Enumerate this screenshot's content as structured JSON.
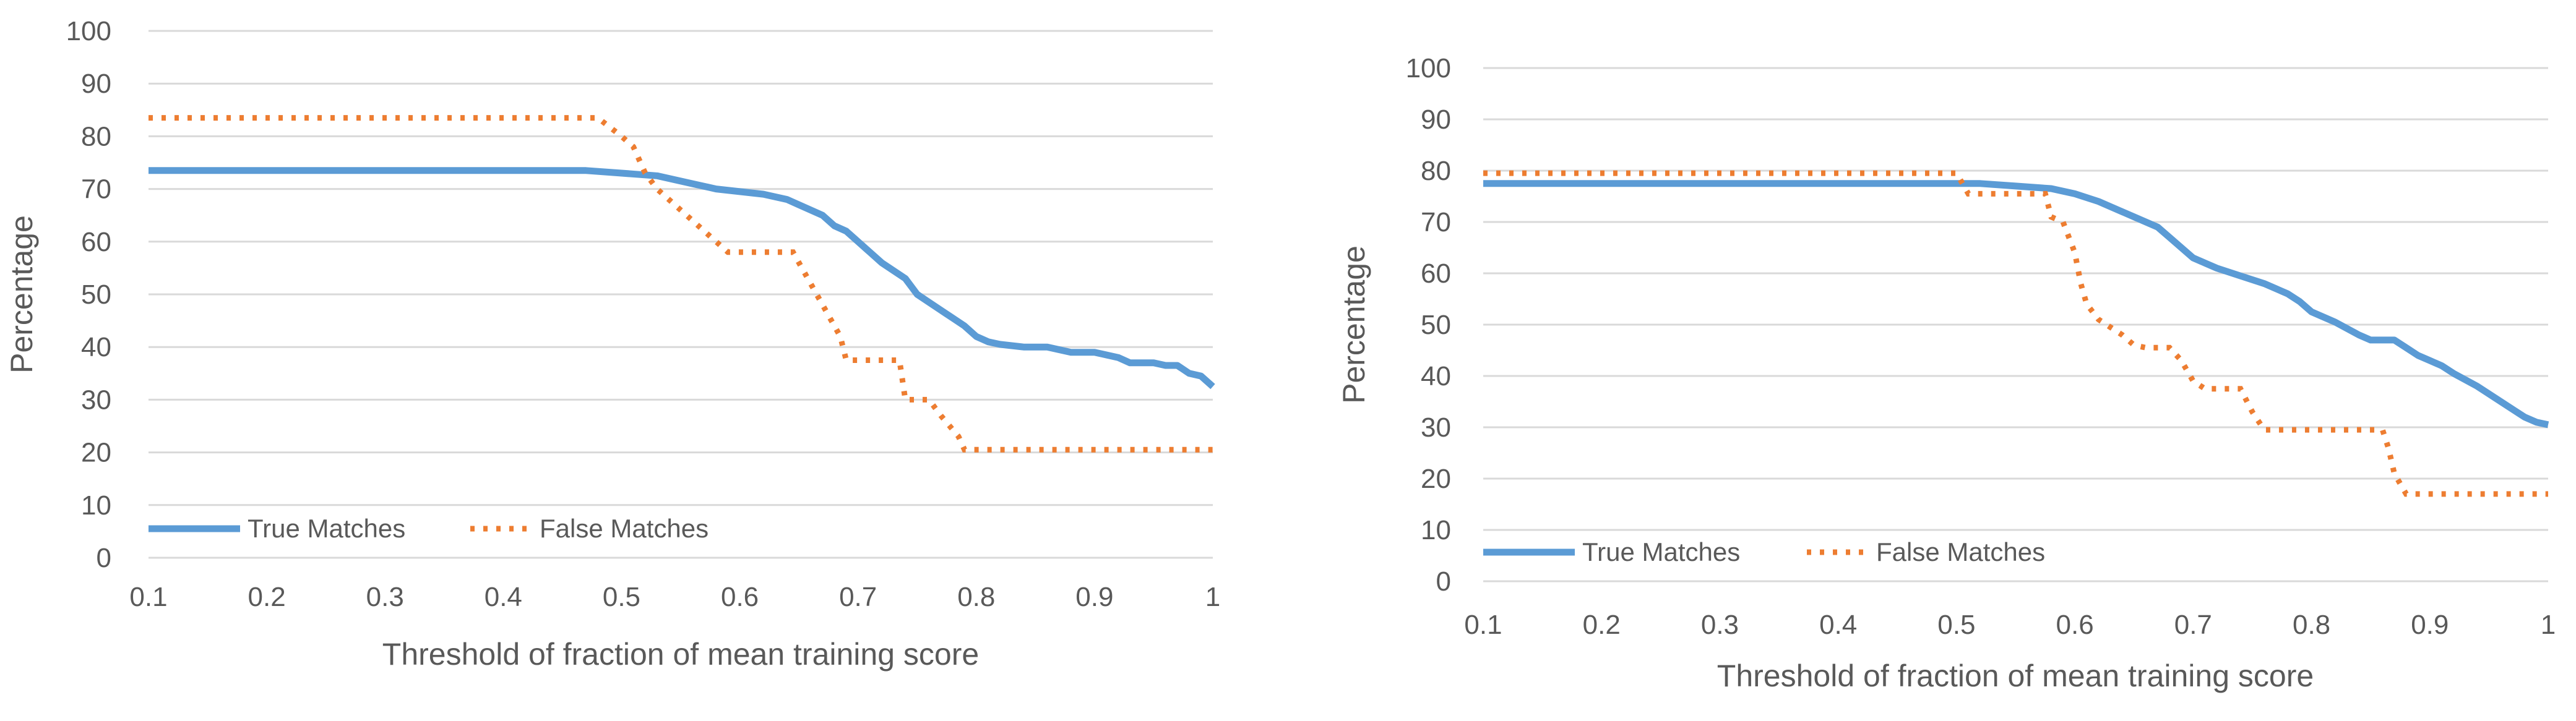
{
  "chart_data": [
    {
      "type": "line",
      "xlabel": "Threshold of fraction of mean training score",
      "ylabel": "Percentage",
      "xlim": [
        0.1,
        1
      ],
      "ylim": [
        0,
        100
      ],
      "x_ticks": [
        "0.1",
        "0.2",
        "0.3",
        "0.4",
        "0.5",
        "0.6",
        "0.7",
        "0.8",
        "0.9",
        "1"
      ],
      "y_ticks": [
        "0",
        "10",
        "20",
        "30",
        "40",
        "50",
        "60",
        "70",
        "80",
        "90",
        "100"
      ],
      "grid": true,
      "legend_position": "bottom-left",
      "series": [
        {
          "name": "True Matches",
          "style": "solid",
          "color": "#5b9bd5",
          "x": [
            0.1,
            0.47,
            0.5,
            0.53,
            0.56,
            0.58,
            0.6,
            0.62,
            0.64,
            0.65,
            0.66,
            0.67,
            0.68,
            0.69,
            0.7,
            0.71,
            0.72,
            0.73,
            0.74,
            0.75,
            0.76,
            0.77,
            0.78,
            0.79,
            0.8,
            0.81,
            0.82,
            0.84,
            0.86,
            0.88,
            0.9,
            0.91,
            0.92,
            0.93,
            0.95,
            0.96,
            0.97,
            0.98,
            0.99,
            1.0
          ],
          "y": [
            73.5,
            73.5,
            73,
            72.5,
            71,
            70,
            69.5,
            69,
            68,
            67,
            66,
            65,
            63,
            62,
            60,
            58,
            56,
            54.5,
            53,
            50,
            48.5,
            47,
            45.5,
            44,
            42,
            41,
            40.5,
            40,
            40,
            39,
            39,
            38.5,
            38,
            37,
            37,
            36.5,
            36.5,
            35,
            34.5,
            32.5
          ]
        },
        {
          "name": "False Matches",
          "style": "dotted",
          "color": "#ed7d31",
          "x": [
            0.1,
            0.48,
            0.5,
            0.51,
            0.52,
            0.53,
            0.54,
            0.55,
            0.56,
            0.57,
            0.58,
            0.59,
            0.6,
            0.645,
            0.655,
            0.665,
            0.675,
            0.685,
            0.69,
            0.735,
            0.74,
            0.76,
            0.77,
            0.785,
            0.79,
            1.0
          ],
          "y": [
            83.5,
            83.5,
            80,
            78,
            73,
            70,
            68,
            66,
            64,
            62,
            60,
            58,
            58,
            58,
            54,
            50,
            46,
            42,
            37.5,
            37.5,
            30,
            30,
            27,
            23,
            20.5,
            20.5
          ]
        }
      ]
    },
    {
      "type": "line",
      "xlabel": "Threshold of fraction of mean training score",
      "ylabel": "Percentage",
      "xlim": [
        0.1,
        1
      ],
      "ylim": [
        0,
        100
      ],
      "x_ticks": [
        "0.1",
        "0.2",
        "0.3",
        "0.4",
        "0.5",
        "0.6",
        "0.7",
        "0.8",
        "0.9",
        "1"
      ],
      "y_ticks": [
        "0",
        "10",
        "20",
        "30",
        "40",
        "50",
        "60",
        "70",
        "80",
        "90",
        "100"
      ],
      "grid": true,
      "legend_position": "bottom-left",
      "series": [
        {
          "name": "True Matches",
          "style": "solid",
          "color": "#5b9bd5",
          "x": [
            0.1,
            0.52,
            0.55,
            0.58,
            0.6,
            0.62,
            0.64,
            0.65,
            0.67,
            0.68,
            0.69,
            0.7,
            0.71,
            0.72,
            0.74,
            0.76,
            0.78,
            0.79,
            0.8,
            0.82,
            0.84,
            0.85,
            0.87,
            0.88,
            0.89,
            0.9,
            0.91,
            0.92,
            0.94,
            0.96,
            0.98,
            0.99,
            1.0
          ],
          "y": [
            77.5,
            77.5,
            77,
            76.5,
            75.5,
            74,
            72,
            71,
            69,
            67,
            65,
            63,
            62,
            61,
            59.5,
            58,
            56,
            54.5,
            52.5,
            50.5,
            48,
            47,
            47,
            45.5,
            44,
            43,
            42,
            40.5,
            38,
            35,
            32,
            31,
            30.5
          ]
        },
        {
          "name": "False Matches",
          "style": "dotted",
          "color": "#ed7d31",
          "x": [
            0.1,
            0.5,
            0.51,
            0.575,
            0.58,
            0.59,
            0.6,
            0.605,
            0.61,
            0.62,
            0.64,
            0.65,
            0.66,
            0.68,
            0.69,
            0.7,
            0.71,
            0.74,
            0.75,
            0.76,
            0.86,
            0.865,
            0.87,
            0.88,
            1.0
          ],
          "y": [
            79.5,
            79.5,
            75.5,
            75.5,
            71,
            70,
            64,
            58,
            54,
            51,
            48,
            46,
            45.5,
            45.5,
            43,
            39,
            37.5,
            37.5,
            33,
            29.5,
            29.5,
            26,
            21,
            17,
            17
          ]
        }
      ]
    }
  ]
}
